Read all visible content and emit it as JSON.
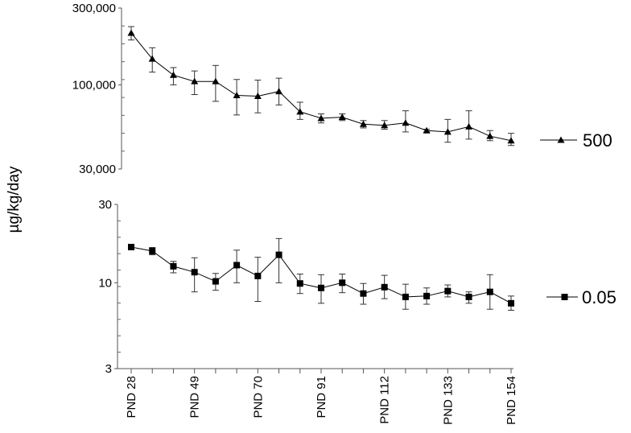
{
  "chart_data": {
    "type": "line",
    "ylabel": "µg/kg/day",
    "x": [
      28,
      35,
      42,
      49,
      56,
      63,
      70,
      77,
      84,
      91,
      98,
      105,
      112,
      119,
      126,
      133,
      140,
      147,
      154
    ],
    "xtick_values": [
      28,
      49,
      70,
      91,
      112,
      133,
      154
    ],
    "xtick_labels": [
      "PND 28",
      "PND 49",
      "PND 70",
      "PND 91",
      "PND 112",
      "PND 133",
      "PND 154"
    ],
    "panels": [
      {
        "scale": "log",
        "ylim": [
          30000,
          300000
        ],
        "ytick_values": [
          30000,
          100000,
          300000
        ],
        "ytick_labels": [
          "30,000",
          "100,000",
          "300,000"
        ],
        "series": {
          "name": "500",
          "marker": "triangle",
          "values": [
            210000,
            145000,
            115000,
            105000,
            105000,
            86000,
            85000,
            91000,
            68000,
            62000,
            63000,
            57000,
            56000,
            58000,
            52000,
            51000,
            55000,
            48000,
            45000
          ],
          "err_low": [
            190000,
            120000,
            100000,
            87000,
            79000,
            65000,
            67000,
            75000,
            61000,
            58000,
            60000,
            54000,
            53000,
            51000,
            51000,
            44000,
            46000,
            45000,
            42000
          ],
          "err_high": [
            230000,
            170000,
            128000,
            122000,
            132000,
            108000,
            107000,
            110000,
            78000,
            66000,
            66000,
            60000,
            60000,
            69000,
            53000,
            61000,
            69000,
            52000,
            50000
          ]
        }
      },
      {
        "scale": "log",
        "ylim": [
          3,
          30
        ],
        "ytick_values": [
          3,
          10,
          30
        ],
        "ytick_labels": [
          "3",
          "10",
          "30"
        ],
        "series": {
          "name": "0.05",
          "marker": "square",
          "values": [
            16.5,
            15.6,
            12.6,
            11.6,
            10.2,
            12.8,
            11.0,
            14.8,
            9.9,
            9.3,
            10.0,
            8.6,
            9.4,
            8.2,
            8.3,
            8.9,
            8.2,
            8.8,
            7.5
          ],
          "err_low": [
            16.0,
            14.8,
            11.5,
            8.8,
            9.0,
            10.0,
            7.7,
            10.0,
            8.6,
            7.5,
            8.7,
            7.4,
            8.0,
            6.9,
            7.4,
            8.2,
            7.5,
            6.9,
            6.8
          ],
          "err_high": [
            17.0,
            16.4,
            13.5,
            14.2,
            11.4,
            15.8,
            14.3,
            18.6,
            11.3,
            11.2,
            11.3,
            9.9,
            11.1,
            9.8,
            9.3,
            9.7,
            8.8,
            11.2,
            8.3
          ]
        }
      }
    ]
  }
}
